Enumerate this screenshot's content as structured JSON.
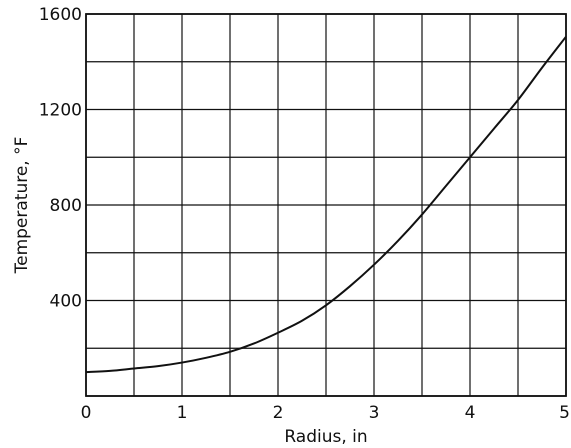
{
  "chart_data": {
    "type": "line",
    "xlabel": "Radius, in",
    "ylabel": "Temperature, °F",
    "xlim": [
      0,
      5
    ],
    "ylim": [
      0,
      1600
    ],
    "x_gridlines": [
      0,
      0.5,
      1,
      1.5,
      2,
      2.5,
      3,
      3.5,
      4,
      4.5,
      5
    ],
    "y_gridlines": [
      0,
      200,
      400,
      600,
      800,
      1000,
      1200,
      1400,
      1600
    ],
    "x_ticks": [
      {
        "value": 0,
        "label": "0"
      },
      {
        "value": 1,
        "label": "1"
      },
      {
        "value": 2,
        "label": "2"
      },
      {
        "value": 3,
        "label": "3"
      },
      {
        "value": 4,
        "label": "4"
      },
      {
        "value": 5,
        "label": "5"
      }
    ],
    "y_ticks": [
      {
        "value": 400,
        "label": "400"
      },
      {
        "value": 800,
        "label": "800"
      },
      {
        "value": 1200,
        "label": "1200"
      },
      {
        "value": 1600,
        "label": "1600"
      }
    ],
    "grid": true,
    "series": [
      {
        "x": [
          0,
          0.25,
          0.5,
          0.75,
          1,
          1.25,
          1.5,
          1.75,
          2,
          2.25,
          2.5,
          2.75,
          3,
          3.25,
          3.5,
          3.75,
          4,
          4.25,
          4.5,
          4.75,
          5
        ],
        "y": [
          100,
          105,
          115,
          125,
          140,
          160,
          185,
          220,
          265,
          315,
          380,
          460,
          550,
          650,
          760,
          880,
          1000,
          1120,
          1240,
          1375,
          1505
        ]
      }
    ]
  }
}
